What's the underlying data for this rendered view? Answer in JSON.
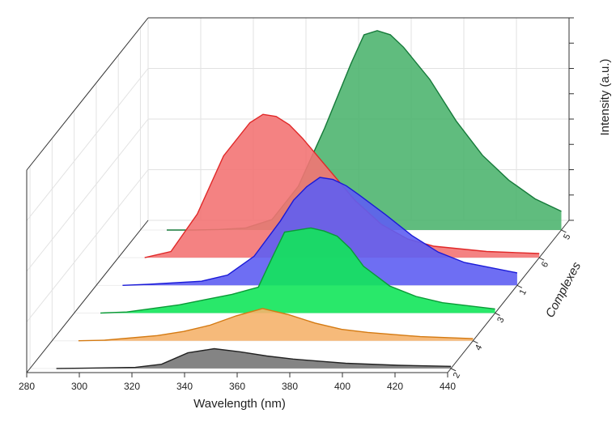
{
  "chart_data": {
    "type": "area",
    "view": "3d-waterfall",
    "xlabel": "Wavelength (nm)",
    "ylabel": "Complexes",
    "zlabel": "Intensity (a.u.)",
    "xlim": [
      280,
      440
    ],
    "x_ticks": [
      "280",
      "300",
      "320",
      "340",
      "360",
      "380",
      "400",
      "420",
      "440"
    ],
    "category_ticks": [
      "2",
      "4",
      "3",
      "1",
      "6",
      "5"
    ],
    "grid": true,
    "series": [
      {
        "name": "2",
        "color": "#777777",
        "x": [
          290,
          300,
          320,
          330,
          340,
          350,
          360,
          370,
          380,
          390,
          400,
          420,
          440
        ],
        "y": [
          0,
          0.2,
          1,
          4,
          15,
          19,
          16,
          12,
          9,
          7,
          5,
          3,
          2
        ]
      },
      {
        "name": "4",
        "color": "#f5b26b",
        "x": [
          290,
          300,
          320,
          330,
          340,
          350,
          360,
          370,
          380,
          390,
          400,
          420,
          440
        ],
        "y": [
          0,
          0.5,
          5,
          9,
          15,
          24,
          31,
          25,
          17,
          11,
          8,
          4,
          2
        ]
      },
      {
        "name": "3",
        "color": "#12e65a",
        "x": [
          290,
          300,
          320,
          330,
          340,
          350,
          355,
          360,
          365,
          370,
          375,
          380,
          385,
          390,
          400,
          410,
          420,
          440
        ],
        "y": [
          0,
          1,
          8,
          13,
          18,
          25,
          52,
          78,
          80,
          82,
          79,
          74,
          62,
          45,
          26,
          16,
          10,
          4
        ]
      },
      {
        "name": "1",
        "color": "#5e5ef2",
        "x": [
          290,
          300,
          320,
          330,
          340,
          350,
          355,
          360,
          365,
          370,
          375,
          380,
          390,
          400,
          410,
          420,
          440
        ],
        "y": [
          0,
          1,
          4,
          10,
          28,
          62,
          82,
          95,
          104,
          102,
          96,
          87,
          68,
          48,
          32,
          22,
          12
        ]
      },
      {
        "name": "6",
        "color": "#f37474",
        "x": [
          290,
          300,
          310,
          320,
          330,
          335,
          340,
          345,
          350,
          360,
          370,
          380,
          390,
          400,
          420,
          440
        ],
        "y": [
          0,
          6,
          42,
          98,
          130,
          138,
          136,
          128,
          115,
          85,
          55,
          32,
          18,
          11,
          6,
          4
        ]
      },
      {
        "name": "5",
        "color": "#4fb570",
        "x": [
          290,
          300,
          310,
          320,
          330,
          340,
          350,
          360,
          365,
          370,
          375,
          380,
          390,
          400,
          410,
          420,
          430,
          440
        ],
        "y": [
          0,
          0,
          0.5,
          2,
          10,
          42,
          98,
          160,
          188,
          192,
          188,
          176,
          145,
          105,
          72,
          48,
          30,
          18
        ]
      }
    ]
  }
}
